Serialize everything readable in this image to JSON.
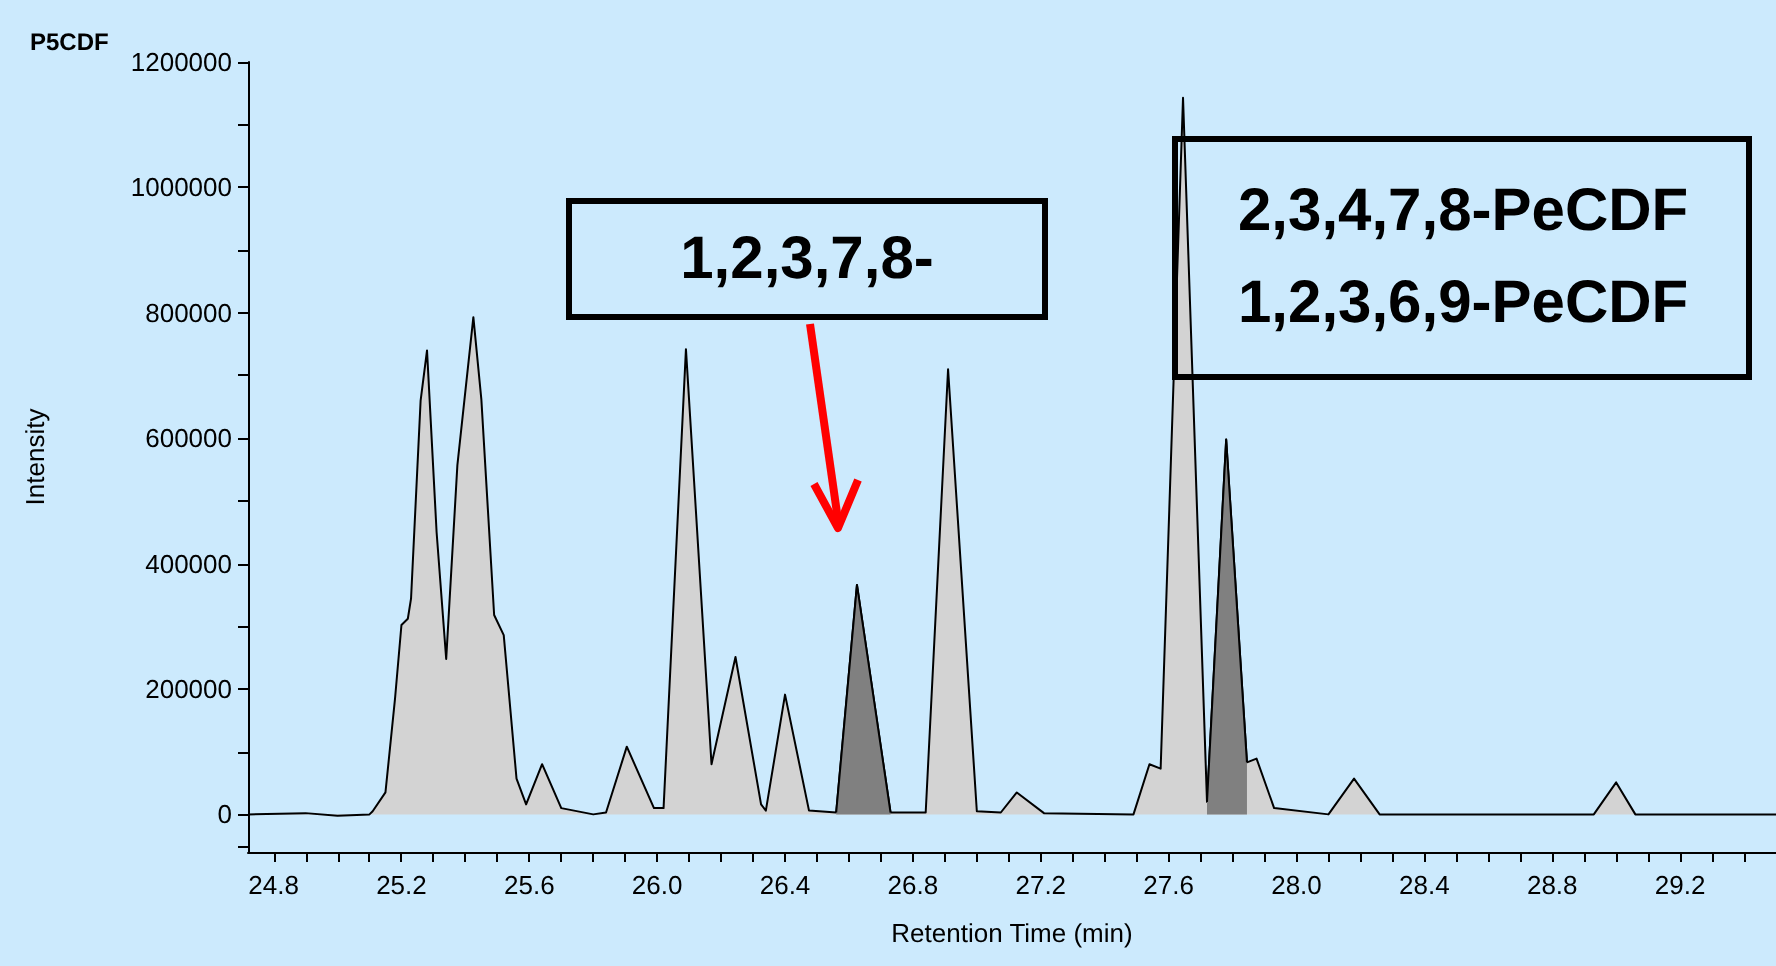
{
  "chart_data": {
    "type": "area",
    "title": "P5CDF",
    "xlabel": "Retention Time (min)",
    "ylabel": "Intensity",
    "marker": "none",
    "xlim": [
      24.72,
      29.5
    ],
    "ylim": [
      -60000,
      1200000
    ],
    "xticks": [
      24.8,
      {
        "value": 24.9,
        "label": null
      },
      {
        "value": 25.0,
        "label": null
      },
      {
        "value": 25.1,
        "label": null
      },
      25.2,
      {
        "value": 25.3,
        "label": null
      },
      {
        "value": 25.4,
        "label": null
      },
      {
        "value": 25.5,
        "label": null
      },
      25.6,
      {
        "value": 25.7,
        "label": null
      },
      {
        "value": 25.8,
        "label": null
      },
      {
        "value": 25.9,
        "label": null
      },
      {
        "value": 26.0,
        "label": "26.0"
      },
      {
        "value": 26.1,
        "label": null
      },
      {
        "value": 26.2,
        "label": null
      },
      {
        "value": 26.3,
        "label": null
      },
      26.4,
      {
        "value": 26.5,
        "label": null
      },
      {
        "value": 26.6,
        "label": null
      },
      {
        "value": 26.7,
        "label": null
      },
      26.8,
      {
        "value": 26.9,
        "label": null
      },
      {
        "value": 27.0,
        "label": null
      },
      {
        "value": 27.1,
        "label": null
      },
      27.2,
      {
        "value": 27.3,
        "label": null
      },
      {
        "value": 27.4,
        "label": null
      },
      {
        "value": 27.5,
        "label": null
      },
      27.6,
      {
        "value": 27.7,
        "label": null
      },
      {
        "value": 27.8,
        "label": null
      },
      {
        "value": 27.9,
        "label": null
      },
      {
        "value": 28.0,
        "label": "28.0"
      },
      {
        "value": 28.1,
        "label": null
      },
      {
        "value": 28.2,
        "label": null
      },
      {
        "value": 28.3,
        "label": null
      },
      28.4,
      {
        "value": 28.5,
        "label": null
      },
      {
        "value": 28.6,
        "label": null
      },
      {
        "value": 28.7,
        "label": null
      },
      28.8,
      {
        "value": 28.9,
        "label": null
      },
      {
        "value": 29.0,
        "label": null
      },
      {
        "value": 29.1,
        "label": null
      },
      29.2,
      {
        "value": 29.3,
        "label": null
      },
      {
        "value": 29.4,
        "label": null
      }
    ],
    "yticks": [
      {
        "value": -50000,
        "label": null
      },
      0,
      {
        "value": 100000,
        "label": null
      },
      200000,
      {
        "value": 300000,
        "label": null
      },
      400000,
      {
        "value": 500000,
        "label": null
      },
      600000,
      {
        "value": 700000,
        "label": null
      },
      800000,
      {
        "value": 900000,
        "label": null
      },
      1000000,
      {
        "value": 1100000,
        "label": null
      },
      1200000
    ],
    "series": [
      {
        "color": "#d3d3d3",
        "x": [
          24.72,
          24.9,
          25.0,
          25.1,
          25.11,
          25.15,
          25.18,
          25.2,
          25.22,
          25.23,
          25.26,
          25.28,
          25.31,
          25.34,
          25.375,
          25.425,
          25.45,
          25.49,
          25.52,
          25.56,
          25.59,
          25.64,
          25.7,
          25.8,
          25.84,
          25.905,
          25.99,
          26.02,
          26.09,
          26.17,
          26.245,
          26.325,
          26.34,
          26.4,
          26.475,
          26.56,
          26.625,
          26.73,
          26.84,
          26.91,
          27.0,
          27.075,
          27.125,
          27.21,
          27.49,
          27.54,
          27.575,
          27.645,
          27.72,
          27.78,
          27.845,
          27.875,
          27.93,
          28.1,
          28.18,
          28.26,
          28.93,
          29.0,
          29.06,
          29.5
        ],
        "values": [
          0,
          2000,
          -2000,
          0,
          5000,
          35000,
          185000,
          302000,
          312000,
          344000,
          660000,
          740000,
          450000,
          248000,
          557000,
          793000,
          662000,
          318000,
          286000,
          57000,
          16000,
          80000,
          10000,
          0,
          3000,
          108000,
          10000,
          10000,
          742000,
          80000,
          251000,
          16000,
          6000,
          191000,
          6000,
          3000,
          366000,
          3000,
          3000,
          710000,
          5000,
          3000,
          35000,
          2000,
          0,
          80000,
          73000,
          1143000,
          20000,
          598000,
          83000,
          89000,
          10000,
          0,
          57000,
          0,
          0,
          51000,
          0,
          0
        ]
      },
      {
        "color": "#808080",
        "x": [
          26.56,
          26.625,
          26.73,
          26.74,
          27.72,
          27.78,
          27.845
        ],
        "values": [
          3000,
          366000,
          3000,
          null,
          20000,
          598000,
          83000
        ]
      }
    ],
    "annotations": [
      "1,2,3,7,8-",
      "2,3,4,7,8-PeCDF\n1,2,3,6,9-PeCDF"
    ]
  }
}
